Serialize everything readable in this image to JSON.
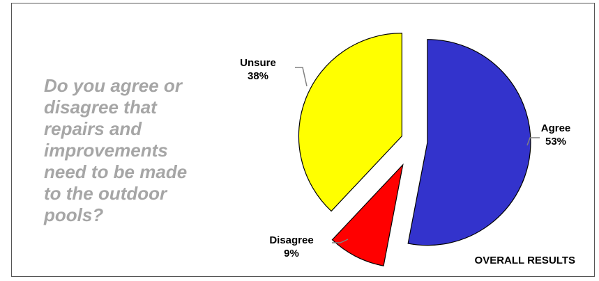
{
  "question": "Do you agree or disagree that repairs and improvements need to be made to the outdoor pools?",
  "footer": "OVERALL RESULTS",
  "chart_data": {
    "type": "pie",
    "title": "",
    "slices": [
      {
        "label": "Agree",
        "value": 53,
        "value_label": "53%",
        "color": "#3333cc"
      },
      {
        "label": "Disagree",
        "value": 9,
        "value_label": "9%",
        "color": "#ff0000"
      },
      {
        "label": "Unsure",
        "value": 38,
        "value_label": "38%",
        "color": "#ffff00"
      }
    ],
    "exploded": true,
    "legend": "none"
  }
}
